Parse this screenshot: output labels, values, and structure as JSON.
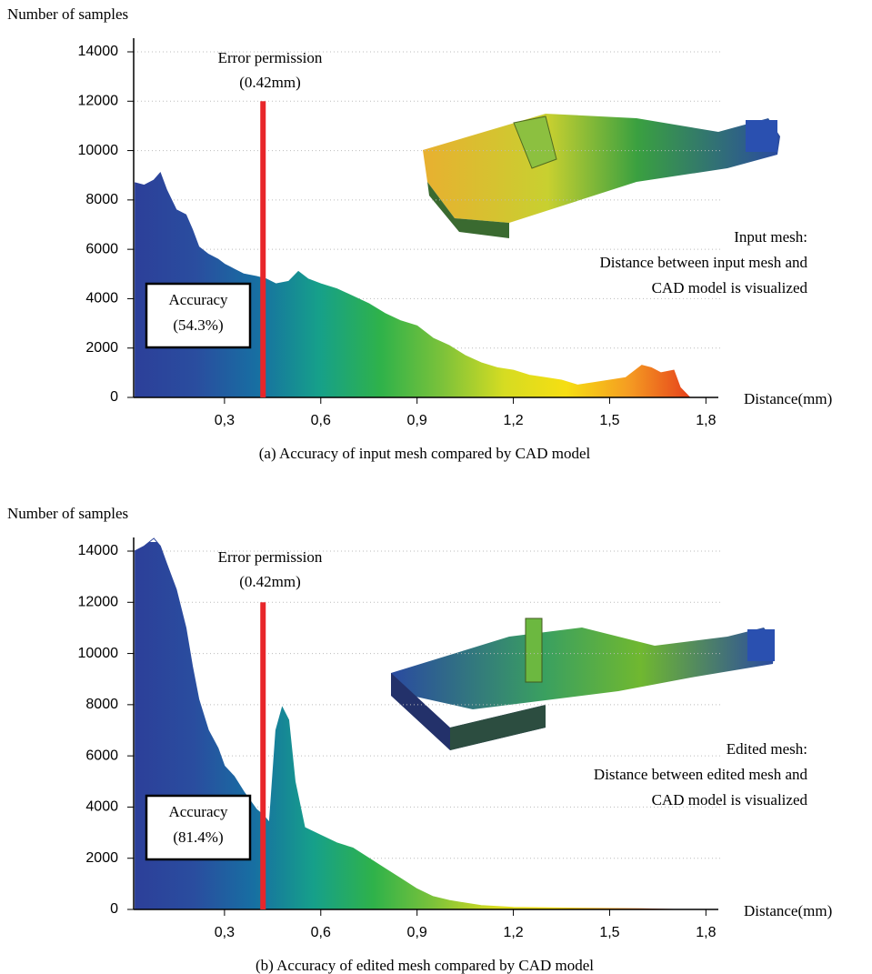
{
  "chart_data": [
    {
      "type": "area",
      "y_label": "Number of samples",
      "x_label": "Distance(mm)",
      "caption": "(a) Accuracy of input mesh compared by CAD model",
      "threshold_title": "Error permission",
      "threshold_label": "(0.42mm)",
      "threshold": {
        "x": 0.42,
        "top": 12000,
        "color": "#e8262a"
      },
      "accuracy_title": "Accuracy",
      "accuracy_label": "(54.3%)",
      "annotation": [
        "Input mesh:",
        "Distance between input mesh and",
        "CAD model is visualized"
      ],
      "gradient": [
        "#2c3f99",
        "#2a4d9f",
        "#176fa2",
        "#16a08a",
        "#2fb24a",
        "#7cc23a",
        "#d6dc22",
        "#f6de12",
        "#f59d22",
        "#e6421c"
      ],
      "x": [
        0.02,
        0.05,
        0.08,
        0.1,
        0.12,
        0.15,
        0.18,
        0.2,
        0.22,
        0.25,
        0.28,
        0.3,
        0.33,
        0.36,
        0.4,
        0.43,
        0.46,
        0.5,
        0.53,
        0.56,
        0.6,
        0.65,
        0.7,
        0.75,
        0.8,
        0.85,
        0.9,
        0.95,
        1.0,
        1.05,
        1.1,
        1.15,
        1.2,
        1.25,
        1.3,
        1.35,
        1.4,
        1.45,
        1.5,
        1.55,
        1.6,
        1.63,
        1.66,
        1.7,
        1.72,
        1.75
      ],
      "values": [
        8700,
        8600,
        8800,
        9100,
        8400,
        7600,
        7400,
        6800,
        6100,
        5800,
        5600,
        5400,
        5200,
        5000,
        4900,
        4800,
        4600,
        4700,
        5100,
        4800,
        4600,
        4400,
        4100,
        3800,
        3400,
        3100,
        2900,
        2400,
        2100,
        1700,
        1400,
        1200,
        1100,
        900,
        800,
        700,
        500,
        600,
        700,
        800,
        1300,
        1200,
        1000,
        1100,
        400,
        0
      ],
      "xlim": [
        0.017,
        1.85
      ],
      "ylim": [
        0,
        14000
      ],
      "xticks": [
        {
          "value": 0.3,
          "label": "0,3"
        },
        {
          "value": 0.6,
          "label": "0,6"
        },
        {
          "value": 0.9,
          "label": "0,9"
        },
        {
          "value": 1.2,
          "label": "1,2"
        },
        {
          "value": 1.5,
          "label": "1,5"
        },
        {
          "value": 1.8,
          "label": "1,8"
        }
      ],
      "yticks": [
        0,
        2000,
        4000,
        6000,
        8000,
        10000,
        12000,
        14000
      ],
      "grid": true
    },
    {
      "type": "area",
      "y_label": "Number of samples",
      "x_label": "Distance(mm)",
      "caption": "(b) Accuracy of edited mesh compared by CAD model",
      "threshold_title": "Error permission",
      "threshold_label": "(0.42mm)",
      "threshold": {
        "x": 0.42,
        "top": 12000,
        "color": "#e8262a"
      },
      "accuracy_title": "Accuracy",
      "accuracy_label": "(81.4%)",
      "annotation": [
        "Edited mesh:",
        "Distance between edited mesh and",
        "CAD model is visualized"
      ],
      "gradient": [
        "#2c3f99",
        "#2a4d9f",
        "#176fa2",
        "#16a08a",
        "#2fb24a",
        "#7cc23a",
        "#d6dc22",
        "#f6de12",
        "#f59d22",
        "#e6421c"
      ],
      "x": [
        0.02,
        0.05,
        0.08,
        0.1,
        0.12,
        0.15,
        0.18,
        0.2,
        0.22,
        0.25,
        0.28,
        0.3,
        0.33,
        0.36,
        0.4,
        0.42,
        0.44,
        0.46,
        0.48,
        0.5,
        0.52,
        0.55,
        0.6,
        0.65,
        0.7,
        0.75,
        0.8,
        0.85,
        0.9,
        0.95,
        1.0,
        1.05,
        1.1,
        1.2,
        1.4,
        1.6,
        1.7
      ],
      "values": [
        14000,
        14200,
        14500,
        14200,
        13500,
        12500,
        11000,
        9500,
        8200,
        7000,
        6300,
        5600,
        5200,
        4600,
        3900,
        3700,
        3400,
        7000,
        7900,
        7400,
        5000,
        3200,
        2900,
        2600,
        2400,
        2000,
        1600,
        1200,
        800,
        500,
        350,
        250,
        150,
        80,
        50,
        30,
        0
      ],
      "xlim": [
        0.017,
        1.85
      ],
      "ylim": [
        0,
        14000
      ],
      "xticks": [
        {
          "value": 0.3,
          "label": "0,3"
        },
        {
          "value": 0.6,
          "label": "0,6"
        },
        {
          "value": 0.9,
          "label": "0,9"
        },
        {
          "value": 1.2,
          "label": "1,2"
        },
        {
          "value": 1.5,
          "label": "1,5"
        },
        {
          "value": 1.8,
          "label": "1,8"
        }
      ],
      "yticks": [
        0,
        2000,
        4000,
        6000,
        8000,
        10000,
        12000,
        14000
      ],
      "grid": true
    }
  ]
}
